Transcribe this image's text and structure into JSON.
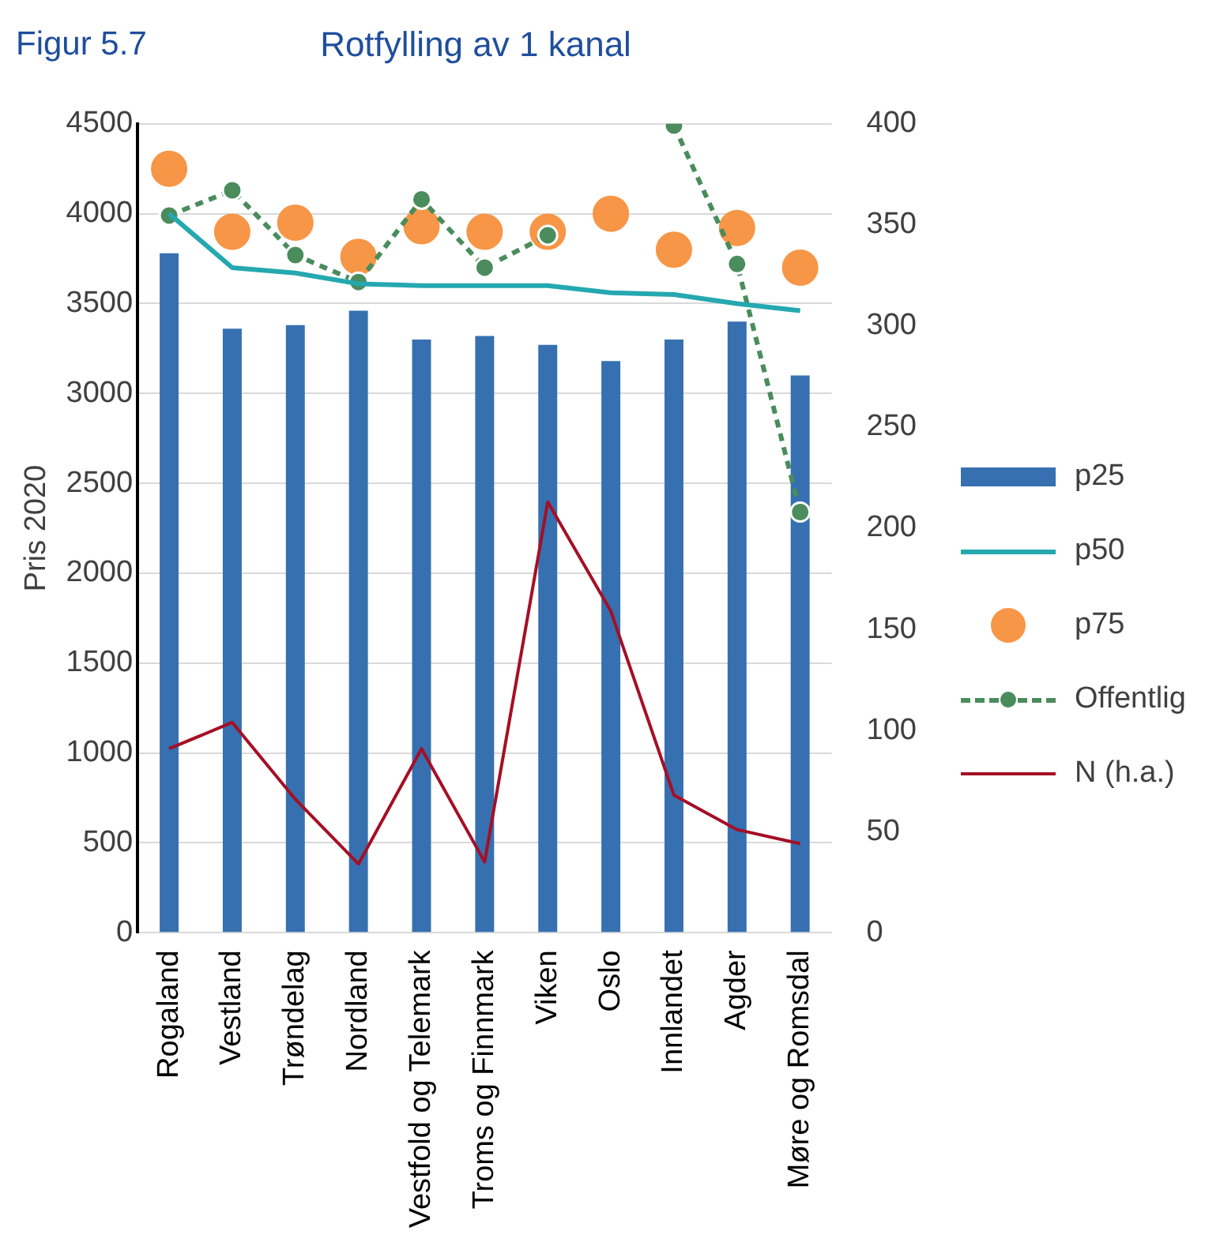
{
  "chart_data": {
    "type": "bar",
    "title": "Rotfylling av 1 kanal",
    "annotations": [
      "Figur 5.7"
    ],
    "ylabel": "Pris 2020",
    "categories": [
      "Rogaland",
      "Vestland",
      "Trøndelag",
      "Nordland",
      "Vestfold og Telemark",
      "Troms og Finnmark",
      "Viken",
      "Oslo",
      "Innlandet",
      "Agder",
      "Møre og Romsdal"
    ],
    "series": [
      {
        "name": "p25",
        "color": "#3670b0",
        "values": [
          3780,
          3360,
          3380,
          3460,
          3300,
          3320,
          3270,
          3180,
          3300,
          3400,
          3100
        ]
      },
      {
        "name": "p50",
        "type": "line",
        "color": "#25a8b0",
        "marker": "none",
        "values": [
          4000,
          3700,
          3670,
          3610,
          3600,
          3600,
          3600,
          3560,
          3550,
          3500,
          3460
        ]
      },
      {
        "name": "p75",
        "type": "scatter",
        "color": "#f79646",
        "marker": "circle",
        "values": [
          4250,
          3900,
          3950,
          3760,
          3930,
          3900,
          3900,
          4000,
          3800,
          3920,
          3700
        ]
      },
      {
        "name": "Offentlig",
        "type": "line",
        "color": "#4a8c5c",
        "marker": "circle",
        "line_style": "dashed",
        "values": [
          3990,
          4130,
          3770,
          3620,
          4080,
          3700,
          3880,
          null,
          4490,
          3720,
          2340
        ]
      },
      {
        "name": "N (h.a.)",
        "type": "line",
        "color": "#a50f25",
        "marker": "none",
        "axis": "y2",
        "values": [
          91,
          104,
          66,
          34,
          91,
          35,
          213,
          159,
          68,
          51,
          44
        ]
      }
    ],
    "ylim": [
      0,
      4500
    ],
    "yticks": [
      0,
      500,
      1000,
      1500,
      2000,
      2500,
      3000,
      3500,
      4000,
      4500
    ],
    "y2lim": [
      0,
      400
    ],
    "y2ticks": [
      0,
      50,
      100,
      150,
      200,
      250,
      300,
      350,
      400
    ],
    "grid": "y",
    "legend": "right"
  }
}
